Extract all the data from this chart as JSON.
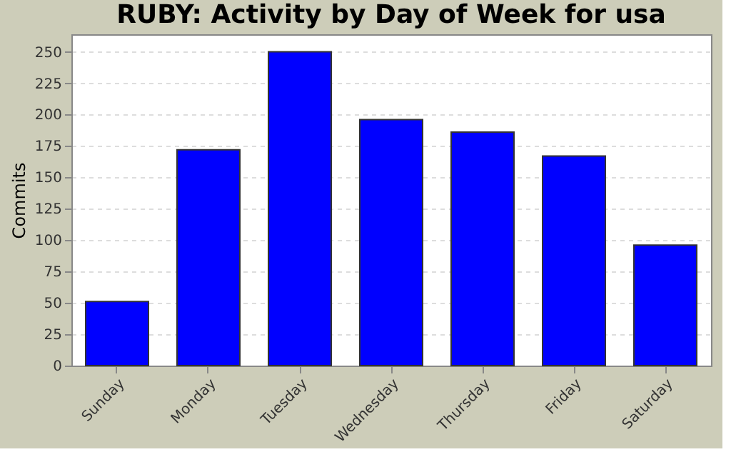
{
  "chart_data": {
    "type": "bar",
    "title": "RUBY: Activity by Day of Week for usa",
    "ylabel": "Commits",
    "categories": [
      "Sunday",
      "Monday",
      "Tuesday",
      "Wednesday",
      "Thursday",
      "Friday",
      "Saturday"
    ],
    "values": [
      51,
      172,
      250,
      196,
      186,
      167,
      96
    ],
    "color": "#0000ff",
    "ylim": [
      0,
      264
    ],
    "yticks": [
      0,
      25,
      50,
      75,
      100,
      125,
      150,
      175,
      200,
      225,
      250
    ],
    "grid": "y"
  }
}
